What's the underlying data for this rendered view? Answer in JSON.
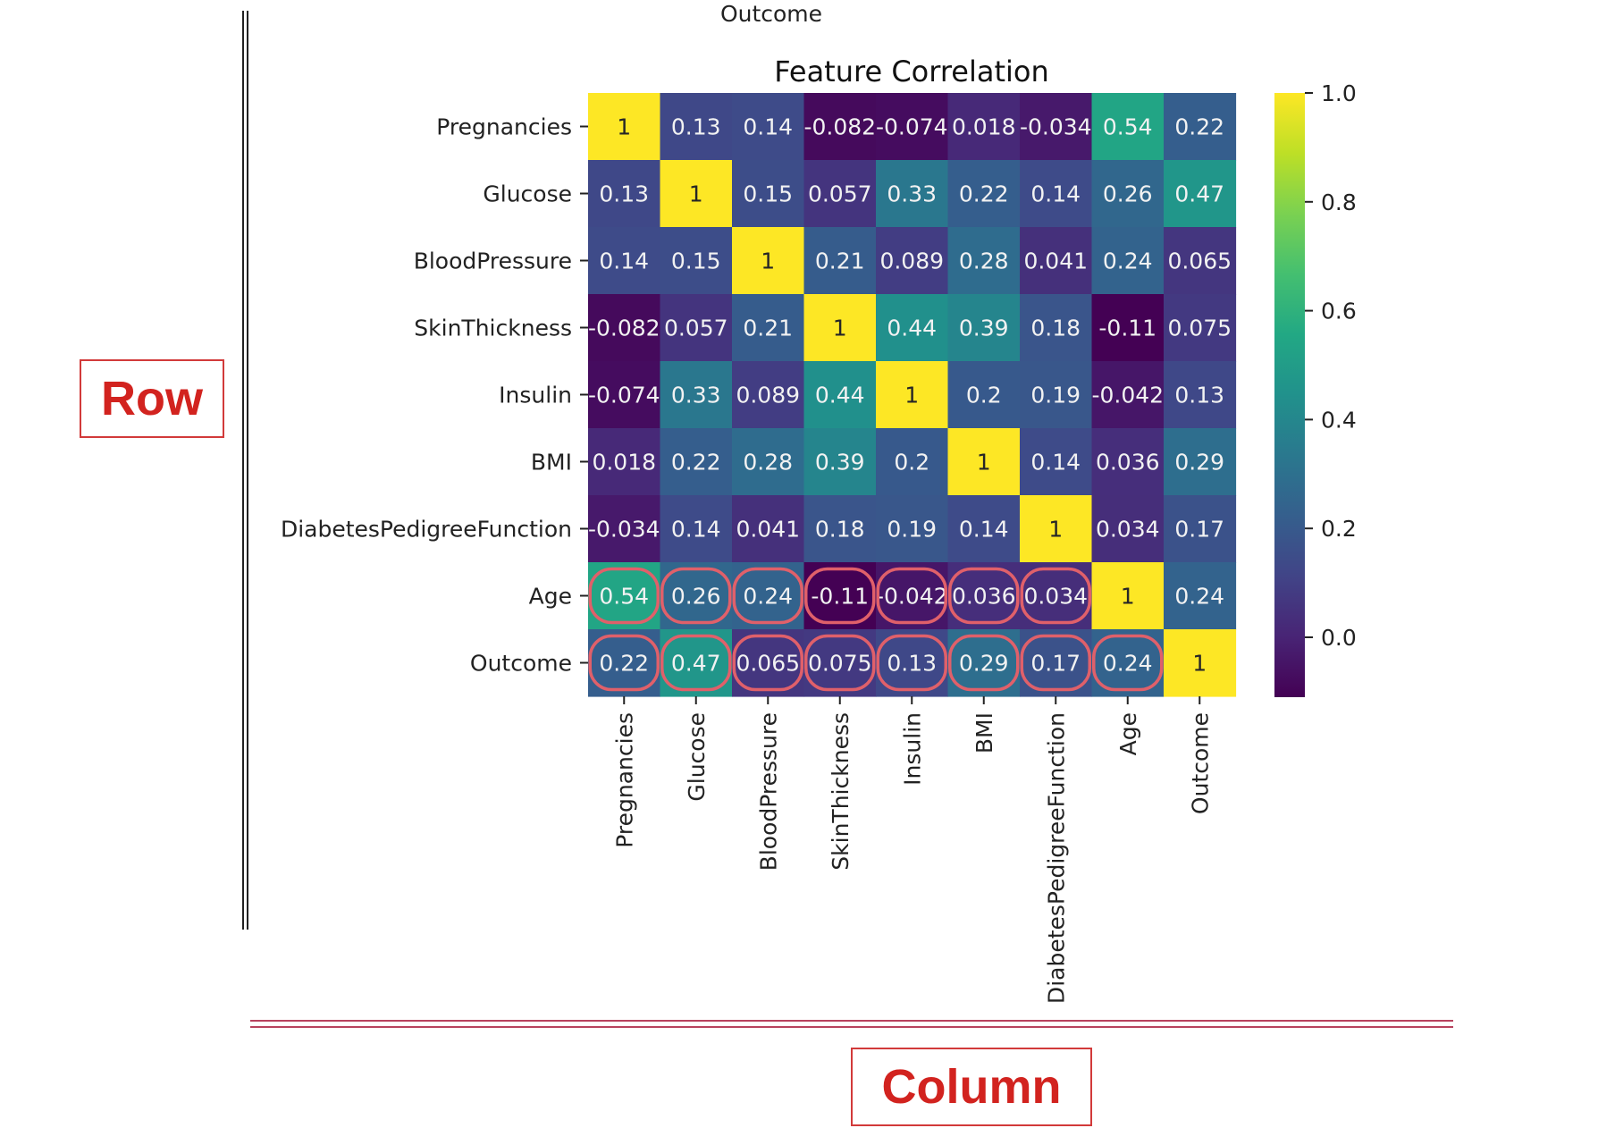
{
  "top_caption": "Outcome",
  "annotations": {
    "row_label": "Row",
    "column_label": "Column",
    "highlight_color": "#e0606a"
  },
  "chart_data": {
    "type": "heatmap",
    "title": "Feature Correlation",
    "colormap": "viridis",
    "labels": [
      "Pregnancies",
      "Glucose",
      "BloodPressure",
      "SkinThickness",
      "Insulin",
      "BMI",
      "DiabetesPedigreeFunction",
      "Age",
      "Outcome"
    ],
    "display_values": [
      [
        "1",
        "0.13",
        "0.14",
        "-0.082",
        "-0.074",
        "0.018",
        "-0.034",
        "0.54",
        "0.22"
      ],
      [
        "0.13",
        "1",
        "0.15",
        "0.057",
        "0.33",
        "0.22",
        "0.14",
        "0.26",
        "0.47"
      ],
      [
        "0.14",
        "0.15",
        "1",
        "0.21",
        "0.089",
        "0.28",
        "0.041",
        "0.24",
        "0.065"
      ],
      [
        "-0.082",
        "0.057",
        "0.21",
        "1",
        "0.44",
        "0.39",
        "0.18",
        "-0.11",
        "0.075"
      ],
      [
        "-0.074",
        "0.33",
        "0.089",
        "0.44",
        "1",
        "0.2",
        "0.19",
        "-0.042",
        "0.13"
      ],
      [
        "0.018",
        "0.22",
        "0.28",
        "0.39",
        "0.2",
        "1",
        "0.14",
        "0.036",
        "0.29"
      ],
      [
        "-0.034",
        "0.14",
        "0.041",
        "0.18",
        "0.19",
        "0.14",
        "1",
        "0.034",
        "0.17"
      ],
      [
        "0.54",
        "0.26",
        "0.24",
        "-0.11",
        "-0.042",
        "0.036",
        "0.034",
        "1",
        "0.24"
      ],
      [
        "0.22",
        "0.47",
        "0.065",
        "0.075",
        "0.13",
        "0.29",
        "0.17",
        "0.24",
        "1"
      ]
    ],
    "colorbar": {
      "range": [
        -0.11,
        1.0
      ],
      "ticks": [
        1.0,
        0.8,
        0.6,
        0.4,
        0.2,
        0.0
      ],
      "tick_labels": [
        "1.0",
        "0.8",
        "0.6",
        "0.4",
        "0.2",
        "0.0"
      ]
    },
    "highlighted_rows": [
      "Age",
      "Outcome"
    ]
  }
}
